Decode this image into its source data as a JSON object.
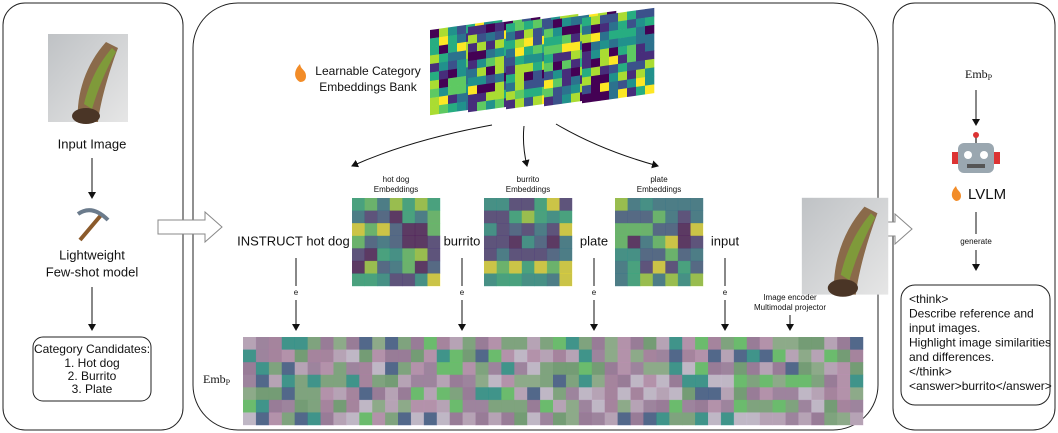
{
  "left_panel": {
    "input_label": "Input Image",
    "model_label": [
      "Lightweight",
      "Few-shot model"
    ],
    "candidates": {
      "title": "Category Candidates:",
      "items": [
        "1. Hot dog",
        "2. Burrito",
        "3. Plate"
      ]
    }
  },
  "middle_panel": {
    "bank_label": [
      "Learnable Category",
      "Embeddings Bank"
    ],
    "embeddings": [
      [
        "hot dog",
        "Embeddings"
      ],
      [
        "burrito",
        "Embeddings"
      ],
      [
        "plate",
        "Embeddings"
      ]
    ],
    "tokens": [
      "INSTRUCT",
      "hot dog",
      "burrito",
      "plate",
      "input"
    ],
    "embed_ops": [
      "e",
      "e",
      "e",
      "e"
    ],
    "encoder_label": [
      "Image encoder",
      "Multimodal projector"
    ],
    "sequence_label": {
      "base": "Emb",
      "sub": "P"
    }
  },
  "right_panel": {
    "input_label": {
      "base": "Emb",
      "sub": "P"
    },
    "model_label": "LVLM",
    "edge_label": "generate",
    "output": [
      "<think>",
      "Describe reference and",
      "input images.",
      "Highlight image similarities",
      "and differences.",
      "</think>",
      "<answer>burrito</answer>"
    ]
  }
}
